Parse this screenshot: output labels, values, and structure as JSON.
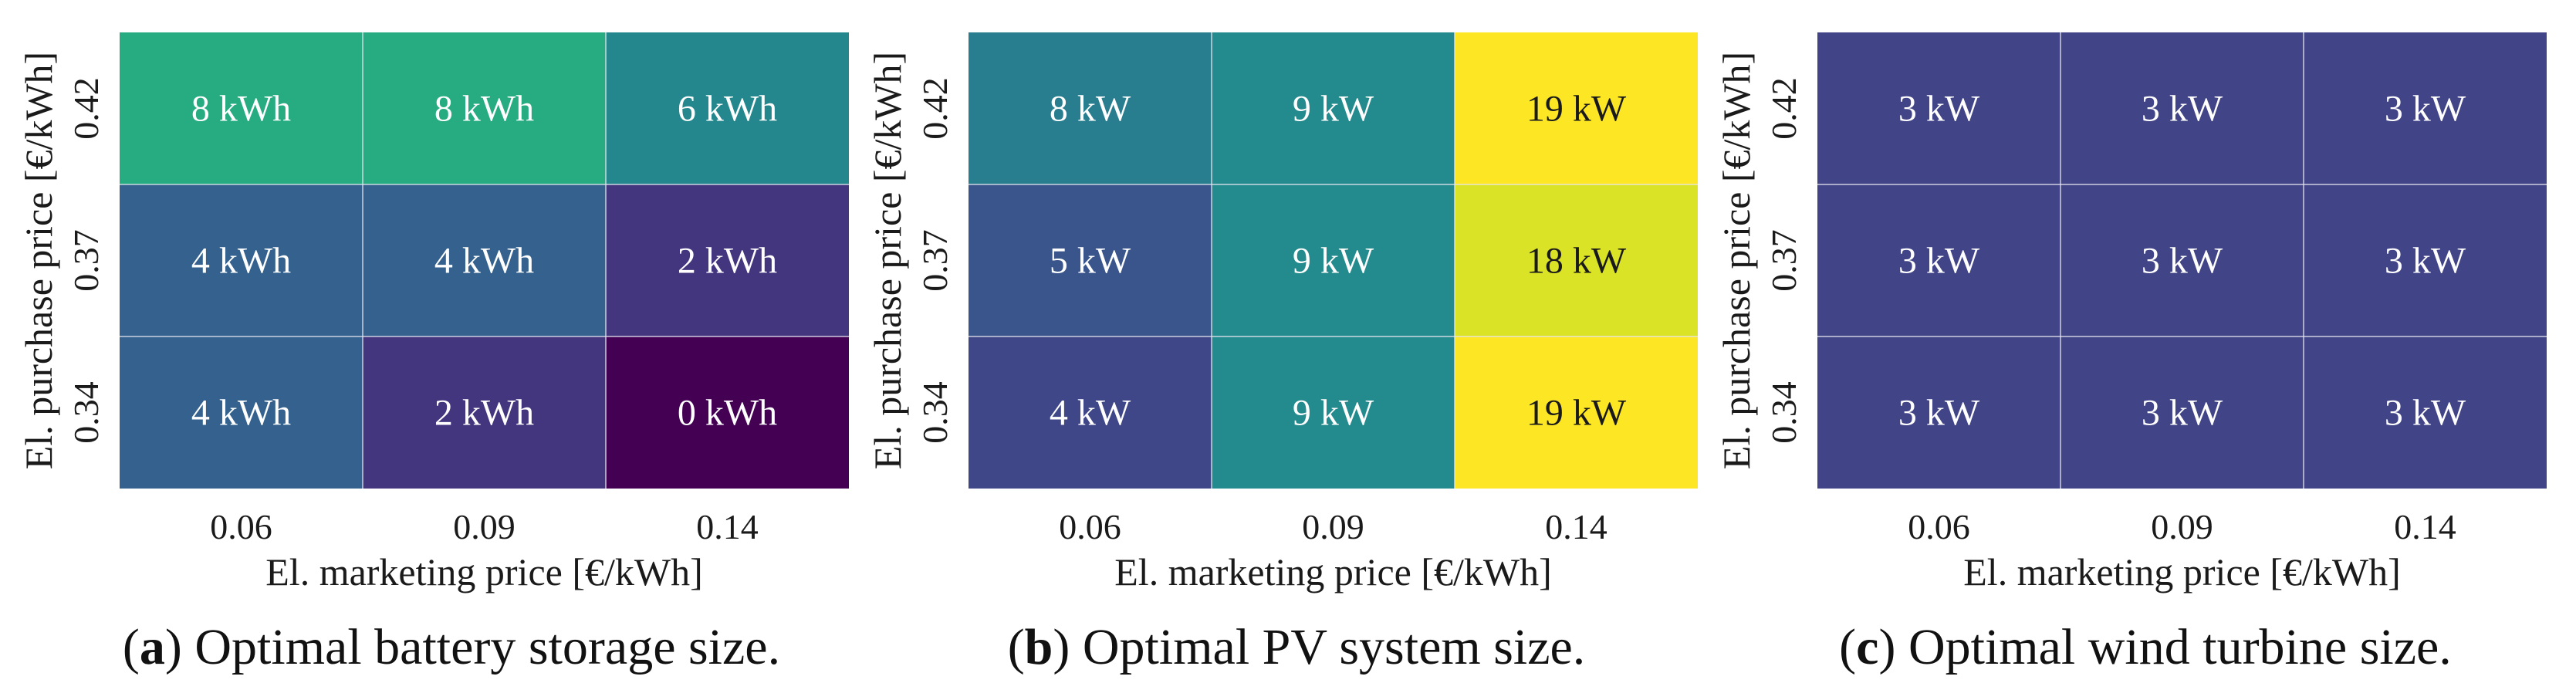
{
  "colors": {
    "viridis": [
      "#440154",
      "#482475",
      "#414487",
      "#355f8d",
      "#2a788e",
      "#21918c",
      "#22a884",
      "#44bf70",
      "#7ad151",
      "#bddf26",
      "#fde725"
    ],
    "grid": "#e6e6f0",
    "text_light": "#ffffff",
    "text_dark": "#1a1a1a"
  },
  "chart_data": [
    {
      "type": "heatmap",
      "label": "a",
      "caption": "Optimal battery storage size.",
      "xlabel": "El. marketing price [€/kWh]",
      "ylabel": "El. purchase price [€/kWh]",
      "x_categories": [
        "0.06",
        "0.09",
        "0.14"
      ],
      "y_categories": [
        "0.42",
        "0.37",
        "0.34"
      ],
      "values": [
        [
          8,
          8,
          6
        ],
        [
          4,
          4,
          2
        ],
        [
          4,
          2,
          0
        ]
      ],
      "unit": "kWh",
      "cell_labels": [
        [
          "8 kWh",
          "8 kWh",
          "6 kWh"
        ],
        [
          "4 kWh",
          "4 kWh",
          "2 kWh"
        ],
        [
          "4 kWh",
          "2 kWh",
          "0 kWh"
        ]
      ],
      "color_range": [
        0,
        13
      ]
    },
    {
      "type": "heatmap",
      "label": "b",
      "caption": "Optimal PV system size.",
      "xlabel": "El. marketing price [€/kWh]",
      "ylabel": "El. purchase price [€/kWh]",
      "x_categories": [
        "0.06",
        "0.09",
        "0.14"
      ],
      "y_categories": [
        "0.42",
        "0.37",
        "0.34"
      ],
      "values": [
        [
          8,
          9,
          19
        ],
        [
          5,
          9,
          18
        ],
        [
          4,
          9,
          19
        ]
      ],
      "unit": "kW",
      "cell_labels": [
        [
          "8 kW",
          "9 kW",
          "19 kW"
        ],
        [
          "5 kW",
          "9 kW",
          "18 kW"
        ],
        [
          "4 kW",
          "9 kW",
          "19 kW"
        ]
      ],
      "color_range": [
        0,
        19
      ]
    },
    {
      "type": "heatmap",
      "label": "c",
      "caption": "Optimal wind turbine size.",
      "xlabel": "El. marketing price [€/kWh]",
      "ylabel": "El. purchase price [€/kWh]",
      "x_categories": [
        "0.06",
        "0.09",
        "0.14"
      ],
      "y_categories": [
        "0.42",
        "0.37",
        "0.34"
      ],
      "values": [
        [
          3,
          3,
          3
        ],
        [
          3,
          3,
          3
        ],
        [
          3,
          3,
          3
        ]
      ],
      "unit": "kW",
      "cell_labels": [
        [
          "3 kW",
          "3 kW",
          "3 kW"
        ],
        [
          "3 kW",
          "3 kW",
          "3 kW"
        ],
        [
          "3 kW",
          "3 kW",
          "3 kW"
        ]
      ],
      "color_range": [
        0,
        15
      ]
    }
  ]
}
